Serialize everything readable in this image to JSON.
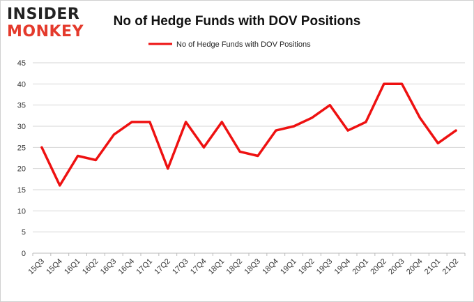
{
  "brand": {
    "line1": "INSIDER",
    "line2": "MONKEY",
    "color_dark": "#222222",
    "color_accent": "#e43a2c"
  },
  "chart_data": {
    "type": "line",
    "title": "No of Hedge Funds with DOV Positions",
    "xlabel": "",
    "ylabel": "",
    "ylim": [
      0,
      45
    ],
    "yticks": [
      0,
      5,
      10,
      15,
      20,
      25,
      30,
      35,
      40,
      45
    ],
    "grid": true,
    "legend_position": "top-center",
    "categories": [
      "15Q3",
      "15Q4",
      "16Q1",
      "16Q2",
      "16Q3",
      "16Q4",
      "17Q1",
      "17Q2",
      "17Q3",
      "17Q4",
      "18Q1",
      "18Q2",
      "18Q3",
      "18Q4",
      "19Q1",
      "19Q2",
      "19Q3",
      "19Q4",
      "20Q1",
      "20Q2",
      "20Q3",
      "20Q4",
      "21Q1",
      "21Q2"
    ],
    "series": [
      {
        "name": "No of Hedge Funds with DOV Positions",
        "color": "#ee1111",
        "values": [
          25,
          16,
          23,
          22,
          28,
          31,
          31,
          20,
          31,
          25,
          31,
          24,
          23,
          29,
          30,
          32,
          35,
          29,
          31,
          40,
          40,
          32,
          26,
          29
        ]
      }
    ]
  }
}
